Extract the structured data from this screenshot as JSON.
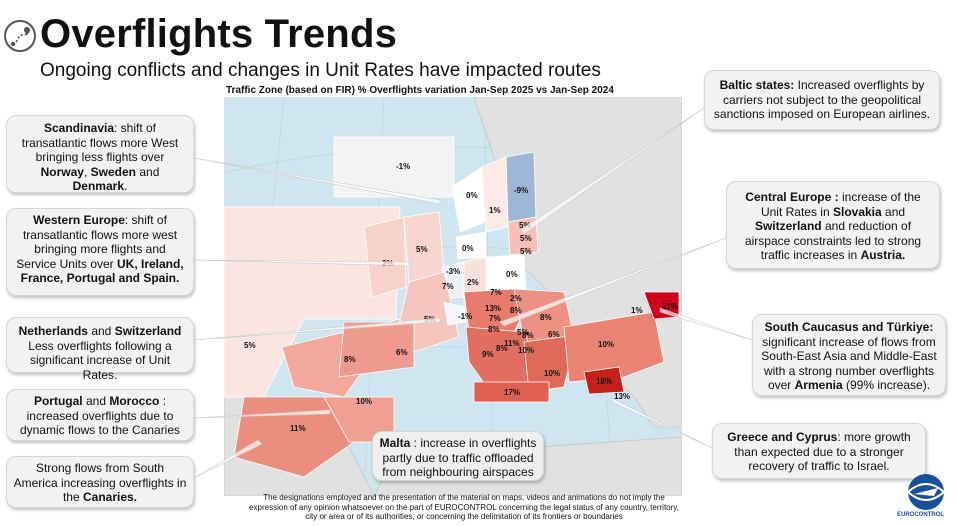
{
  "header": {
    "title": "Overflights Trends",
    "subtitle": "Ongoing conflicts and changes in Unit Rates have impacted routes",
    "map_caption": "Traffic Zone (based on FIR) % Overflights variation  Jan-Sep 2025 vs Jan-Sep 2024"
  },
  "colors": {
    "increase_strong": "#d0021b",
    "increase": "#e8796b",
    "increase_light": "#f6c5bd",
    "decrease": "#9fb7d6",
    "neutral": "#ffffff",
    "sea": "#cfe6f0",
    "land": "#e1e1e1"
  },
  "map_labels": [
    {
      "id": "iceland",
      "text": "-1%"
    },
    {
      "id": "norway",
      "text": "0%"
    },
    {
      "id": "sweden",
      "text": "1%"
    },
    {
      "id": "finland",
      "text": "-9%"
    },
    {
      "id": "estonia",
      "text": "5%"
    },
    {
      "id": "latvia",
      "text": "5%"
    },
    {
      "id": "lithuania",
      "text": "5%"
    },
    {
      "id": "shanwick",
      "text": "3%"
    },
    {
      "id": "uk",
      "text": "5%"
    },
    {
      "id": "denmark",
      "text": "0%"
    },
    {
      "id": "poland",
      "text": "0%"
    },
    {
      "id": "netherlands",
      "text": "-3%"
    },
    {
      "id": "belgium",
      "text": "7%"
    },
    {
      "id": "germany",
      "text": "2%"
    },
    {
      "id": "czechia",
      "text": "7%"
    },
    {
      "id": "slovakia",
      "text": "2%"
    },
    {
      "id": "france",
      "text": "5%"
    },
    {
      "id": "switzerland",
      "text": "-1%"
    },
    {
      "id": "austria",
      "text": "13%"
    },
    {
      "id": "hungary",
      "text": "8%"
    },
    {
      "id": "romania",
      "text": "8%"
    },
    {
      "id": "slovenia",
      "text": "7%"
    },
    {
      "id": "croatia",
      "text": "8%"
    },
    {
      "id": "bosnia",
      "text": "5%"
    },
    {
      "id": "serbia",
      "text": "8%"
    },
    {
      "id": "bulgaria",
      "text": "6%"
    },
    {
      "id": "montenegro",
      "text": "11%"
    },
    {
      "id": "macedonia",
      "text": "10%"
    },
    {
      "id": "albania",
      "text": "8%"
    },
    {
      "id": "moldova",
      "text": "1%"
    },
    {
      "id": "atlantic",
      "text": "5%"
    },
    {
      "id": "portugal",
      "text": "8%"
    },
    {
      "id": "spain",
      "text": "6%"
    },
    {
      "id": "italy",
      "text": "9%"
    },
    {
      "id": "greece",
      "text": "10%"
    },
    {
      "id": "turkey",
      "text": "10%"
    },
    {
      "id": "caucasus",
      "text": "21%"
    },
    {
      "id": "cyprus",
      "text": "18%"
    },
    {
      "id": "israel",
      "text": "13%"
    },
    {
      "id": "malta",
      "text": "17%"
    },
    {
      "id": "morocco",
      "text": "10%"
    },
    {
      "id": "canarias",
      "text": "11%"
    }
  ],
  "callouts": {
    "scandinavia": {
      "part1": "Scandinavia",
      "part2": ": shift of transatlantic flows more West bringing less flights over ",
      "part3": "Norway",
      "part4": ", ",
      "part5": "Sweden",
      "part6": " and ",
      "part7": "Denmark",
      "part8": "."
    },
    "western_europe": {
      "part1": "Western Europe",
      "part2": ": shift of transatlantic flows more west bringing more flights and Service Units over ",
      "part3": "UK, Ireland, France, Portugal and Spain."
    },
    "netherlands": {
      "part1": "Netherlands",
      "part2": " and ",
      "part3": "Switzerland",
      "part4": " Less overflights following a significant increase of Unit Rates."
    },
    "portugal": {
      "part1": "Portugal",
      "part2": " and ",
      "part3": "Morocco",
      "part4": " : increased overflights due to dynamic flows to the Canaries"
    },
    "south_america": {
      "part1": "Strong flows from South America increasing overflights in the ",
      "part2": "Canaries."
    },
    "malta": {
      "part1": "Malta",
      "part2": " : increase in overflights partly due to traffic offloaded from neighbouring airspaces"
    },
    "baltic": {
      "part1": "Baltic states:",
      "part2": " Increased overflights by carriers not subject to the geopolitical sanctions imposed on European airlines."
    },
    "central_europe": {
      "part1": "Central Europe :",
      "part2": " increase of the Unit Rates in ",
      "part3": "Slovakia",
      "part4": " and ",
      "part5": "Switzerland",
      "part6": " and reduction of airspace constraints led to strong traffic increases in ",
      "part7": "Austria."
    },
    "caucasus": {
      "part1": "South Caucasus and Türkiye:",
      "part2": " significant increase of flows from South-East Asia and Middle-East with a strong number overflights over ",
      "part3": "Armenia",
      "part4": " (99% increase)."
    },
    "greece": {
      "part1": "Greece and Cyprus",
      "part2": ": more growth than expected due to a stronger recovery of traffic to Israel."
    }
  },
  "disclaimer": "The designations employed and the presentation of the material on maps, videos and animations do not imply the expression of any opinion whatsoever on the part of EUROCONTROL concerning the legal status of any country, territory, city or area or of its authorities, or concerning the delimitation of its frontiers or boundaries",
  "footer": {
    "logo_text": "EUROCONTROL"
  }
}
